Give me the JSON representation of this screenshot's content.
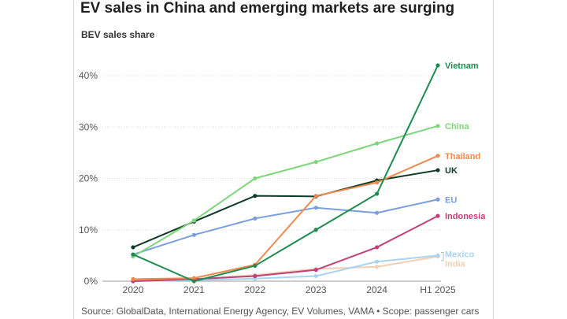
{
  "header": {
    "title": "EV sales in China and emerging markets are surging",
    "subtitle": "BEV sales share"
  },
  "footer": {
    "source": "Source: GlobalData, International Energy Agency, EV Volumes, VAMA • Scope: passenger cars"
  },
  "chart_data": {
    "type": "line",
    "title": "EV sales in China and emerging markets are surging",
    "ylabel": "BEV sales share",
    "xlabel": "",
    "categories": [
      "2020",
      "2021",
      "2022",
      "2023",
      "2024",
      "H1 2025"
    ],
    "ylim": [
      0,
      40
    ],
    "yticks": [
      0,
      10,
      20,
      30,
      40
    ],
    "ytick_labels": [
      "0%",
      "10%",
      "20%",
      "30%",
      "40%"
    ],
    "grid": "horizontal",
    "series": [
      {
        "name": "Vietnam",
        "color": "#1e8c4f",
        "values": [
          5.2,
          0.0,
          3.0,
          10.0,
          17.0,
          42.0
        ]
      },
      {
        "name": "China",
        "color": "#7ed67c",
        "values": [
          4.8,
          11.8,
          20.0,
          23.2,
          26.8,
          30.2
        ]
      },
      {
        "name": "Thailand",
        "color": "#f0894d",
        "values": [
          0.4,
          0.6,
          3.2,
          16.6,
          19.2,
          24.4
        ]
      },
      {
        "name": "UK",
        "color": "#0d3b26",
        "values": [
          6.6,
          11.6,
          16.6,
          16.5,
          19.6,
          21.6
        ]
      },
      {
        "name": "EU",
        "color": "#7a9fe0",
        "values": [
          5.2,
          9.0,
          12.2,
          14.3,
          13.3,
          15.9
        ]
      },
      {
        "name": "Indonesia",
        "color": "#c23f7a",
        "values": [
          0.0,
          0.4,
          1.0,
          2.2,
          6.6,
          12.7
        ]
      },
      {
        "name": "Mexico",
        "color": "#a8d4f2",
        "values": [
          0.0,
          0.2,
          0.5,
          1.0,
          3.8,
          5.0
        ]
      },
      {
        "name": "India",
        "color": "#f3cfb3",
        "values": [
          0.2,
          0.4,
          1.2,
          2.4,
          2.8,
          4.8
        ]
      }
    ]
  }
}
